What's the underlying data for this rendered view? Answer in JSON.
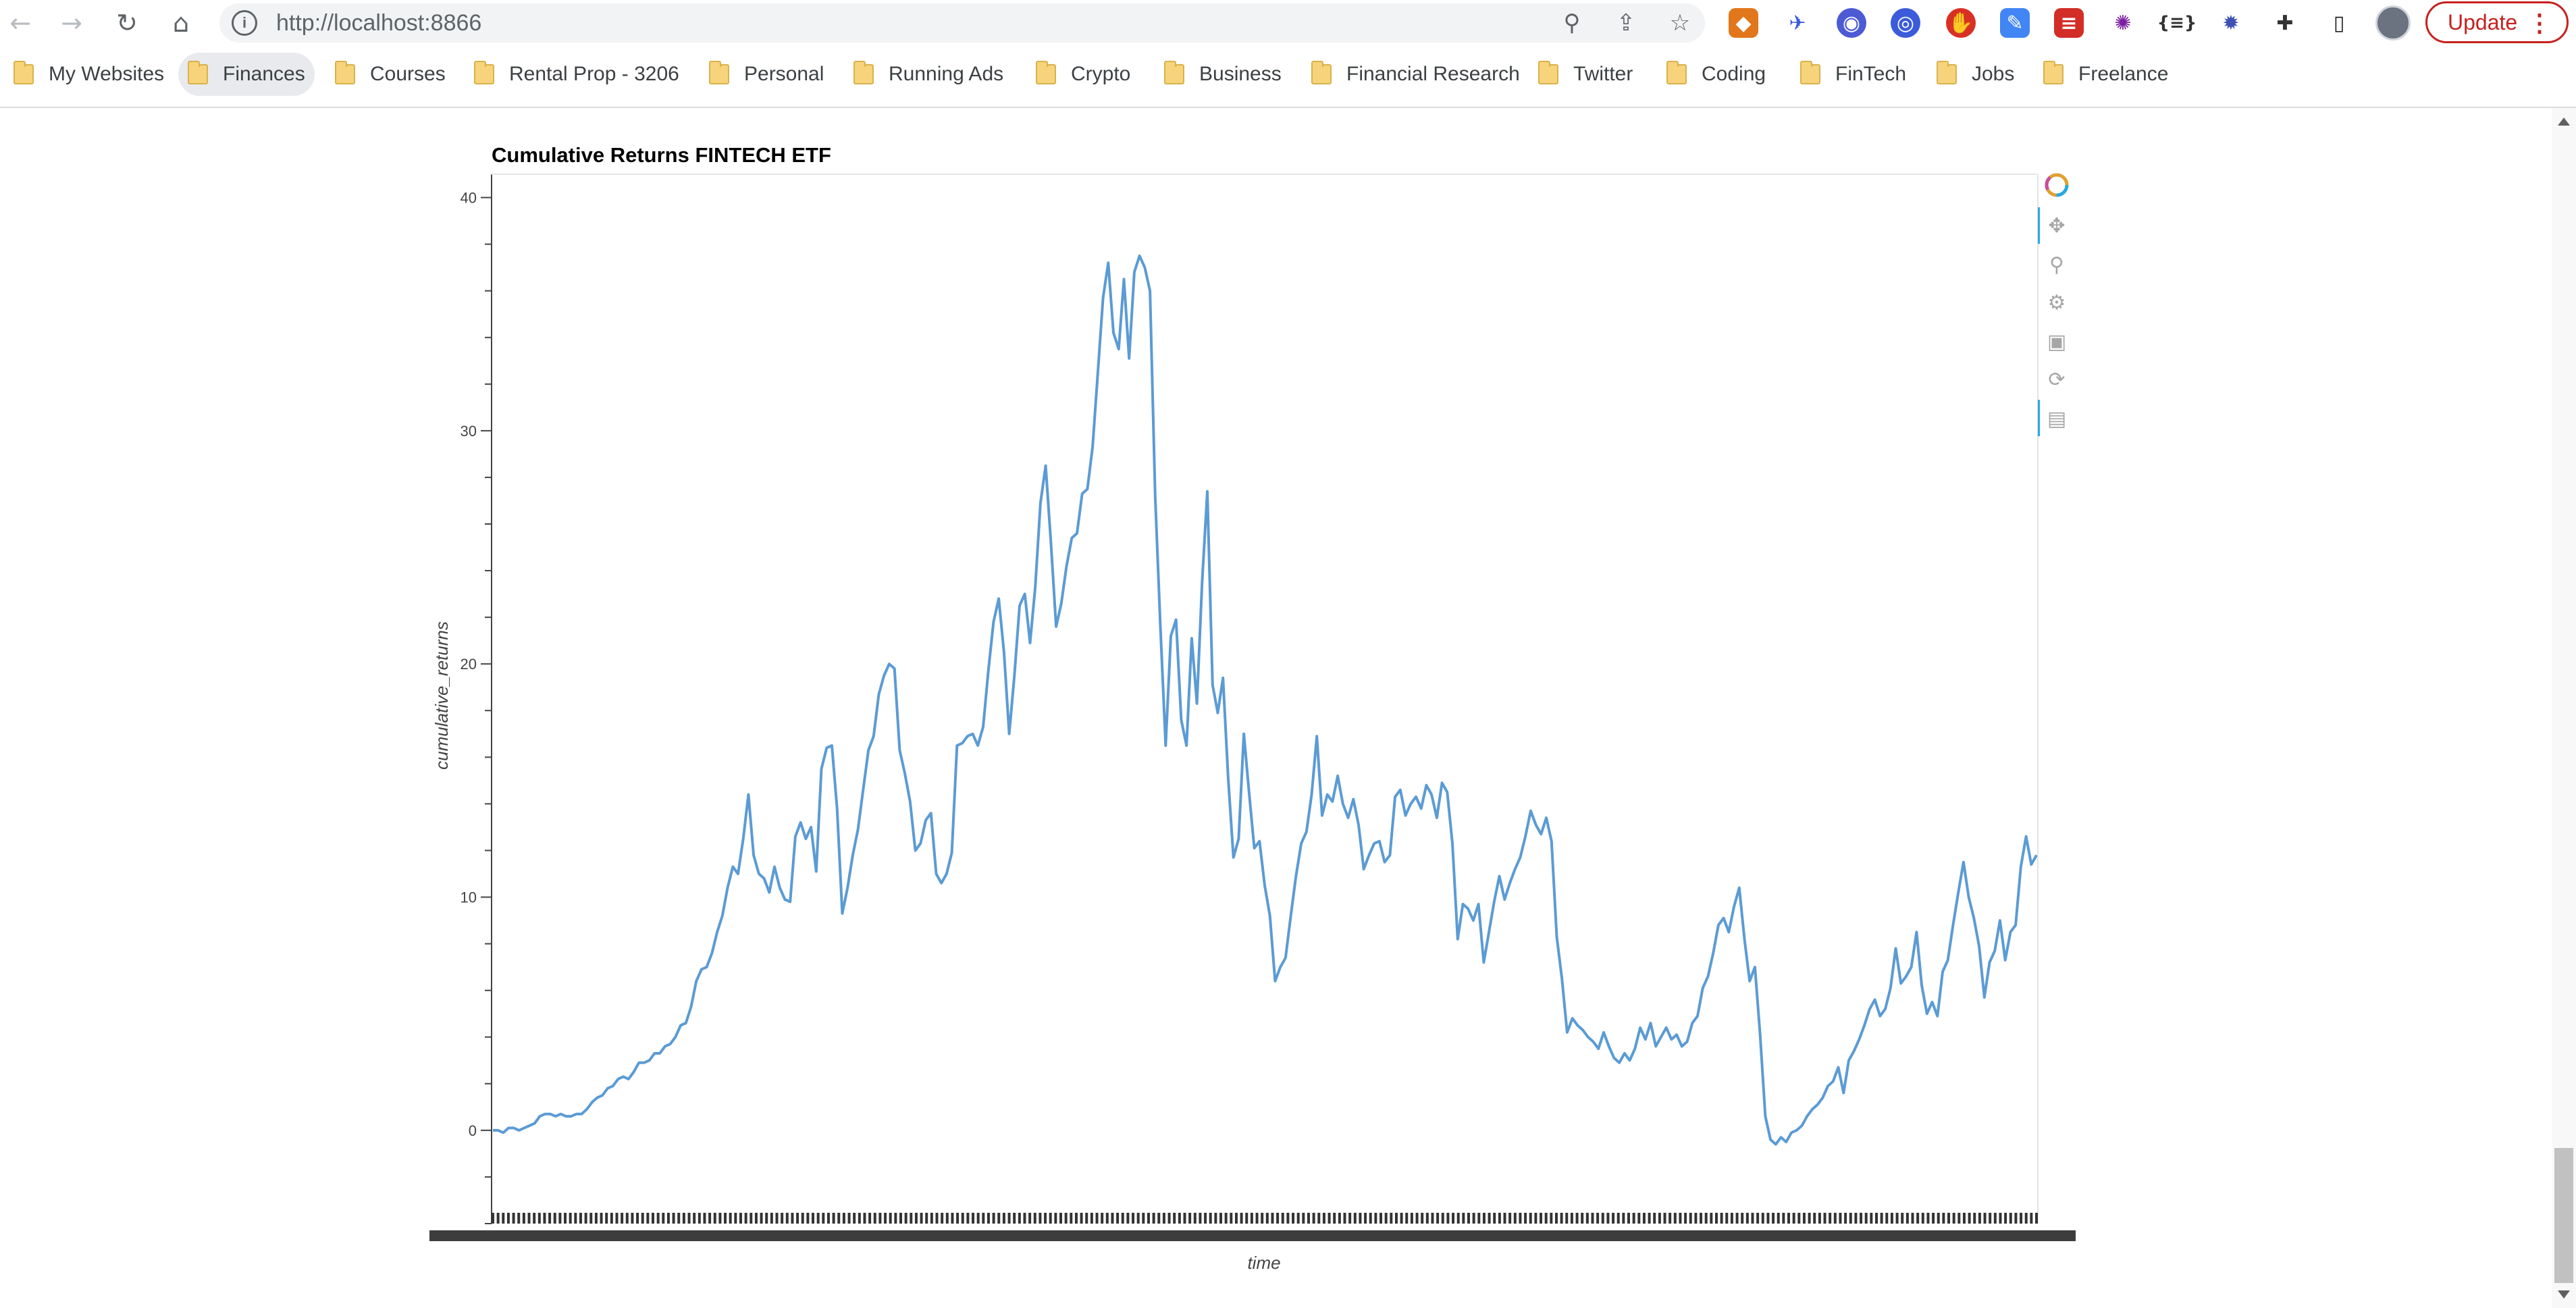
{
  "browser": {
    "url": "http://localhost:8866",
    "update_label": "Update",
    "bookmarks": [
      {
        "label": "My Websites"
      },
      {
        "label": "Finances",
        "active": true
      },
      {
        "label": "Courses"
      },
      {
        "label": "Rental Prop - 3206"
      },
      {
        "label": "Personal"
      },
      {
        "label": "Running Ads"
      },
      {
        "label": "Crypto"
      },
      {
        "label": "Business"
      },
      {
        "label": "Financial Research"
      },
      {
        "label": "Twitter"
      },
      {
        "label": "Coding"
      },
      {
        "label": "FinTech"
      },
      {
        "label": "Jobs"
      },
      {
        "label": "Freelance"
      }
    ],
    "extension_icons": [
      "metamask-fox-icon",
      "satellite-icon",
      "ghost-icon",
      "target-icon",
      "stop-hand-icon",
      "pen-icon",
      "lastpass-icon",
      "color-wheel-icon",
      "json-braces-icon",
      "sparkle-icon",
      "puzzle-extensions-icon",
      "side-panel-icon"
    ]
  },
  "chart_data": {
    "type": "line",
    "title": "Cumulative Returns FINTECH ETF",
    "xlabel": "time",
    "ylabel": "cumulative_returns",
    "ylim": [
      -4,
      41
    ],
    "y_ticks": [
      0,
      10,
      20,
      30,
      40
    ],
    "x_tick_count": 300,
    "grid": false,
    "line_color": "#5b9bd5",
    "series": [
      {
        "values": [
          0.0,
          0.0,
          -0.1,
          0.1,
          0.1,
          0.0,
          0.1,
          0.2,
          0.3,
          0.6,
          0.7,
          0.7,
          0.6,
          0.7,
          0.6,
          0.6,
          0.7,
          0.7,
          0.9,
          1.2,
          1.4,
          1.5,
          1.8,
          1.9,
          2.2,
          2.3,
          2.2,
          2.5,
          2.9,
          2.9,
          3.0,
          3.3,
          3.3,
          3.6,
          3.7,
          4.0,
          4.5,
          4.6,
          5.3,
          6.4,
          6.9,
          7.0,
          7.6,
          8.5,
          9.2,
          10.4,
          11.3,
          11.0,
          12.5,
          14.4,
          11.8,
          11.0,
          10.8,
          10.2,
          11.3,
          10.4,
          9.9,
          9.8,
          12.6,
          13.2,
          12.5,
          13.0,
          11.1,
          15.5,
          16.4,
          16.5,
          13.8,
          9.3,
          10.4,
          11.8,
          12.9,
          14.6,
          16.3,
          16.9,
          18.7,
          19.5,
          20.0,
          19.8,
          16.3,
          15.3,
          14.1,
          12.0,
          12.3,
          13.3,
          13.6,
          11.0,
          10.6,
          11.0,
          11.9,
          16.5,
          16.6,
          16.9,
          17.0,
          16.5,
          17.3,
          19.7,
          21.8,
          22.8,
          20.5,
          17.0,
          19.5,
          22.5,
          23.0,
          20.9,
          23.3,
          26.9,
          28.5,
          25.2,
          21.6,
          22.6,
          24.2,
          25.4,
          25.6,
          27.3,
          27.5,
          29.3,
          32.5,
          35.7,
          37.2,
          34.2,
          33.5,
          36.5,
          33.1,
          36.8,
          37.5,
          37.0,
          36.0,
          27.2,
          21.6,
          16.5,
          21.2,
          21.9,
          17.6,
          16.5,
          21.1,
          18.3,
          23.5,
          27.4,
          19.1,
          17.9,
          19.4,
          15.1,
          11.7,
          12.5,
          17.0,
          14.5,
          12.1,
          12.4,
          10.5,
          9.2,
          6.4,
          7.0,
          7.4,
          9.2,
          10.9,
          12.3,
          12.8,
          14.4,
          16.9,
          13.5,
          14.4,
          14.1,
          15.2,
          14.0,
          13.4,
          14.2,
          13.1,
          11.2,
          11.8,
          12.3,
          12.4,
          11.5,
          11.8,
          14.3,
          14.6,
          13.5,
          14.0,
          14.3,
          13.8,
          14.8,
          14.4,
          13.4,
          14.9,
          14.5,
          12.3,
          8.2,
          9.7,
          9.5,
          9.0,
          9.7,
          7.2,
          8.5,
          9.8,
          10.9,
          9.9,
          10.6,
          11.2,
          11.7,
          12.6,
          13.7,
          13.1,
          12.7,
          13.4,
          12.4,
          8.3,
          6.5,
          4.2,
          4.8,
          4.5,
          4.3,
          4.0,
          3.8,
          3.5,
          4.2,
          3.6,
          3.1,
          2.9,
          3.3,
          3.0,
          3.5,
          4.4,
          3.9,
          4.6,
          3.6,
          4.0,
          4.4,
          3.9,
          4.1,
          3.6,
          3.8,
          4.6,
          4.9,
          6.1,
          6.6,
          7.6,
          8.8,
          9.1,
          8.5,
          9.6,
          10.4,
          8.2,
          6.4,
          7.0,
          4.1,
          0.6,
          -0.4,
          -0.6,
          -0.3,
          -0.5,
          -0.1,
          0.0,
          0.2,
          0.6,
          0.9,
          1.1,
          1.4,
          1.9,
          2.1,
          2.7,
          1.6,
          3.0,
          3.4,
          3.9,
          4.5,
          5.2,
          5.6,
          4.9,
          5.2,
          6.1,
          7.8,
          6.3,
          6.6,
          7.0,
          8.5,
          6.2,
          5.0,
          5.5,
          4.9,
          6.8,
          7.3,
          8.8,
          10.2,
          11.5,
          10.0,
          9.1,
          7.9,
          5.7,
          7.2,
          7.7,
          9.0,
          7.3,
          8.5,
          8.8,
          11.3,
          12.6,
          11.4,
          11.8
        ]
      }
    ]
  }
}
